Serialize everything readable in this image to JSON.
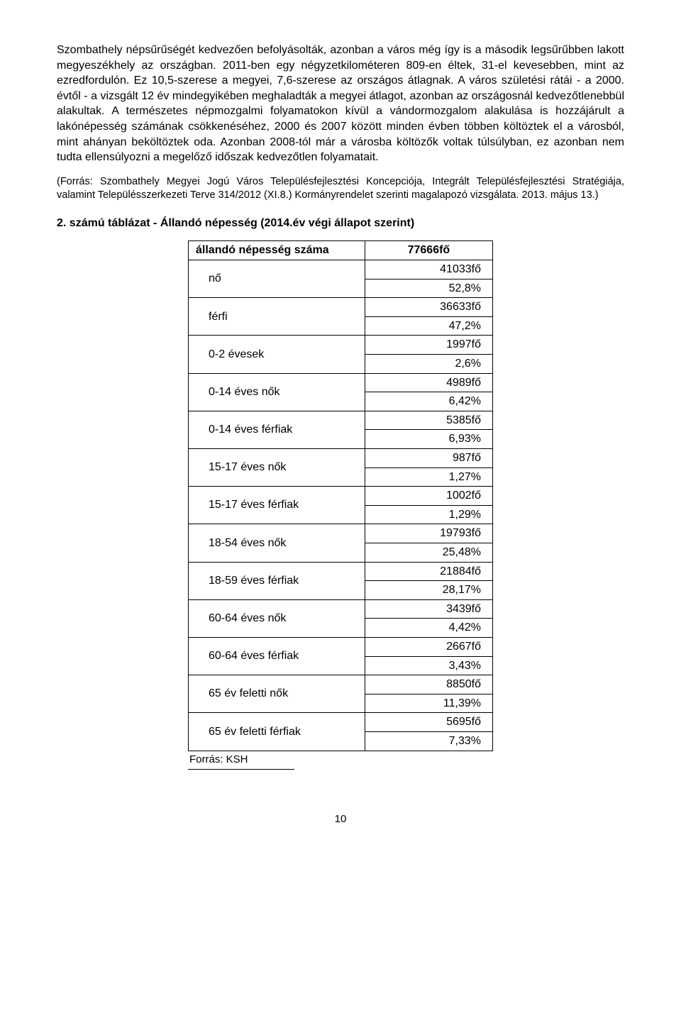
{
  "paragraph1": "Szombathely népsűrűségét kedvezően befolyásolták, azonban a város még így is a második legsűrűbben lakott megyeszékhely az országban. 2011-ben egy négyzetkilométeren 809-en éltek, 31-el kevesebben, mint az ezredfordulón. Ez 10,5-szerese a megyei, 7,6-szerese az országos átlagnak. A város születési rátái - a 2000. évtől - a vizsgált 12 év mindegyikében meghaladták a megyei átlagot, azonban az országosnál kedvezőtlenebbül alakultak. A természetes népmozgalmi folyamatokon kívül a vándormozgalom alakulása is hozzájárult a lakónépesség számának csökkenéséhez, 2000 és 2007 között minden évben többen költöztek el a városból, mint ahányan beköltöztek oda. Azonban 2008-tól már a városba költözők voltak túlsúlyban, ez azonban nem tudta ellensúlyozni a megelőző időszak kedvezőtlen folyamatait.",
  "source_paragraph": "(Forrás: Szombathely Megyei Jogú Város Településfejlesztési Koncepciója, Integrált Településfejlesztési Stratégiája, valamint Településszerkezeti Terve 314/2012 (XI.8.) Kormányrendelet szerinti magalapozó vizsgálata. 2013. május 13.)",
  "table_title": "2. számú táblázat - Állandó népesség (2014.év végi állapot szerint)",
  "table": {
    "header_label": "állandó népesség száma",
    "header_value": "77666fő",
    "rows": [
      {
        "label": "nő",
        "v1": "41033fő",
        "v2": "52,8%"
      },
      {
        "label": "férfi",
        "v1": "36633fő",
        "v2": "47,2%"
      },
      {
        "label": "0-2 évesek",
        "v1": "1997fő",
        "v2": "2,6%"
      },
      {
        "label": "0-14 éves nők",
        "v1": "4989fő",
        "v2": "6,42%"
      },
      {
        "label": "0-14 éves férfiak",
        "v1": "5385fő",
        "v2": "6,93%"
      },
      {
        "label": "15-17 éves nők",
        "v1": "987fő",
        "v2": "1,27%"
      },
      {
        "label": "15-17 éves férfiak",
        "v1": "1002fő",
        "v2": "1,29%"
      },
      {
        "label": "18-54 éves nők",
        "v1": "19793fő",
        "v2": "25,48%"
      },
      {
        "label": "18-59 éves férfiak",
        "v1": "21884fő",
        "v2": "28,17%"
      },
      {
        "label": "60-64 éves nők",
        "v1": "3439fő",
        "v2": "4,42%"
      },
      {
        "label": "60-64 éves férfiak",
        "v1": "2667fő",
        "v2": "3,43%"
      },
      {
        "label": "65 év feletti nők",
        "v1": "8850fő",
        "v2": "11,39%"
      },
      {
        "label": "65 év feletti férfiak",
        "v1": "5695fő",
        "v2": "7,33%"
      }
    ],
    "source": "Forrás: KSH"
  },
  "page_number": "10"
}
